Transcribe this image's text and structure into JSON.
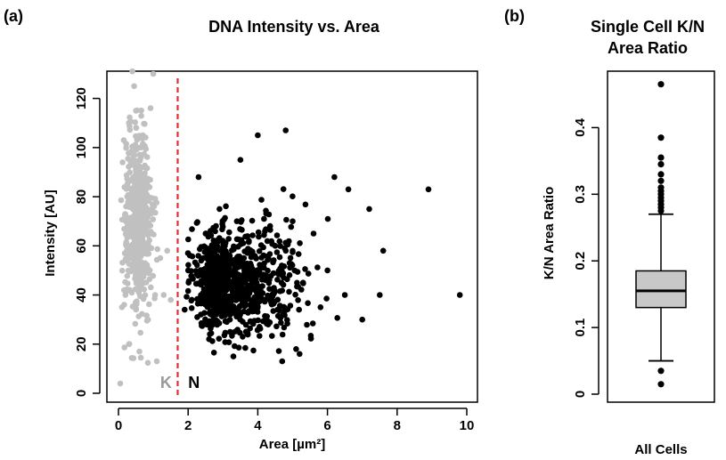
{
  "panels": {
    "a_label": "(a)",
    "b_label": "(b)"
  },
  "chart_data": [
    {
      "type": "scatter",
      "title": "DNA Intensity vs. Area",
      "xlabel": "Area [µm²]",
      "ylabel": "Intensity [AU]",
      "xlim": [
        0,
        10
      ],
      "ylim": [
        0,
        130
      ],
      "xticks": [
        "0",
        "2",
        "4",
        "6",
        "8",
        "10"
      ],
      "yticks": [
        "0",
        "20",
        "40",
        "60",
        "80",
        "100",
        "120"
      ],
      "threshold_line": {
        "x": 1.7,
        "color": "#e03030",
        "style": "dashed"
      },
      "region_labels": [
        {
          "text": "K",
          "color": "#999999"
        },
        {
          "text": "N",
          "color": "#000000"
        }
      ],
      "series": [
        {
          "color": "#c0c0c0",
          "points": [
            [
              0.05,
              4
            ],
            [
              0.1,
              35
            ],
            [
              0.2,
              40
            ],
            [
              0.25,
              80
            ],
            [
              0.3,
              110
            ],
            [
              0.35,
              60
            ],
            [
              0.4,
              131
            ],
            [
              0.45,
              125
            ],
            [
              0.5,
              70
            ],
            [
              0.55,
              90
            ],
            [
              0.6,
              55
            ],
            [
              0.65,
              100
            ],
            [
              0.7,
              45
            ],
            [
              0.75,
              85
            ],
            [
              0.8,
              65
            ],
            [
              0.9,
              50
            ],
            [
              0.95,
              75
            ],
            [
              1.0,
              130
            ],
            [
              1.05,
              40
            ],
            [
              1.1,
              13
            ],
            [
              1.2,
              55
            ],
            [
              1.3,
              40
            ],
            [
              1.4,
              58
            ],
            [
              1.5,
              38
            ],
            [
              0.3,
              20
            ],
            [
              0.6,
              17
            ],
            [
              0.85,
              30
            ],
            [
              0.4,
              95
            ],
            [
              0.5,
              115
            ],
            [
              0.7,
              105
            ]
          ]
        },
        {
          "color": "#000000",
          "points": [
            [
              1.9,
              34
            ],
            [
              2.0,
              50
            ],
            [
              2.3,
              88
            ],
            [
              2.5,
              65
            ],
            [
              2.8,
              40
            ],
            [
              3.0,
              45
            ],
            [
              3.2,
              30
            ],
            [
              3.4,
              70
            ],
            [
              3.6,
              55
            ],
            [
              3.8,
              42
            ],
            [
              4.0,
              105
            ],
            [
              4.2,
              38
            ],
            [
              4.5,
              60
            ],
            [
              4.8,
              107
            ],
            [
              5.0,
              70
            ],
            [
              5.3,
              45
            ],
            [
              5.6,
              65
            ],
            [
              6.0,
              50
            ],
            [
              6.2,
              88
            ],
            [
              6.5,
              40
            ],
            [
              7.0,
              30
            ],
            [
              7.2,
              75
            ],
            [
              7.5,
              40
            ],
            [
              7.6,
              58
            ],
            [
              8.9,
              83
            ],
            [
              9.8,
              40
            ],
            [
              2.6,
              22
            ],
            [
              3.3,
              15
            ],
            [
              4.7,
              13
            ],
            [
              5.8,
              35
            ],
            [
              6.6,
              83
            ],
            [
              3.5,
              95
            ],
            [
              2.9,
              75
            ],
            [
              4.3,
              28
            ],
            [
              5.1,
              18
            ]
          ]
        }
      ]
    },
    {
      "type": "box",
      "title_line1": "Single Cell K/N",
      "title_line2": "Area Ratio",
      "xlabel": "All Cells",
      "ylabel": "K/N Area Ratio",
      "ylim": [
        0,
        0.47
      ],
      "yticks": [
        "0",
        "0.1",
        "0.2",
        "0.3",
        "0.4"
      ],
      "whisker_low": 0.05,
      "q1": 0.13,
      "median": 0.155,
      "q3": 0.185,
      "whisker_high": 0.27,
      "box_fill": "#c8c8c8",
      "outliers": [
        0.015,
        0.035,
        0.275,
        0.28,
        0.285,
        0.29,
        0.295,
        0.3,
        0.305,
        0.31,
        0.32,
        0.33,
        0.345,
        0.355,
        0.385,
        0.465
      ]
    }
  ]
}
